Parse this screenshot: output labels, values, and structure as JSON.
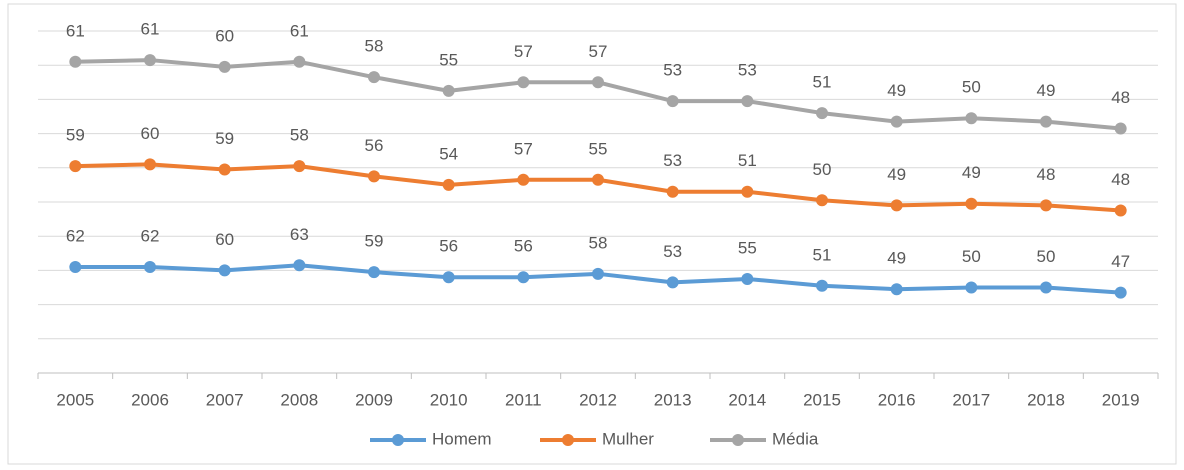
{
  "chart_data": {
    "type": "line",
    "stacked": true,
    "categories": [
      "2005",
      "2006",
      "2007",
      "2008",
      "2009",
      "2010",
      "2011",
      "2012",
      "2013",
      "2014",
      "2015",
      "2016",
      "2017",
      "2018",
      "2019"
    ],
    "series": [
      {
        "name": "Homem",
        "color": "#5b9bd5",
        "values": [
          62,
          62,
          60,
          63,
          59,
          56,
          56,
          58,
          53,
          55,
          51,
          49,
          50,
          50,
          47
        ]
      },
      {
        "name": "Mulher",
        "color": "#ed7d31",
        "values": [
          59,
          60,
          59,
          58,
          56,
          54,
          57,
          55,
          53,
          51,
          50,
          49,
          49,
          48,
          48
        ]
      },
      {
        "name": "Média",
        "color": "#a5a5a5",
        "values": [
          61,
          61,
          60,
          61,
          58,
          55,
          57,
          57,
          53,
          53,
          51,
          49,
          50,
          49,
          48
        ]
      }
    ],
    "ylim": [
      0,
      200
    ],
    "yticks": [
      0,
      20,
      40,
      60,
      80,
      100,
      120,
      140,
      160,
      180,
      200
    ],
    "grid": true,
    "legend": "bottom"
  }
}
